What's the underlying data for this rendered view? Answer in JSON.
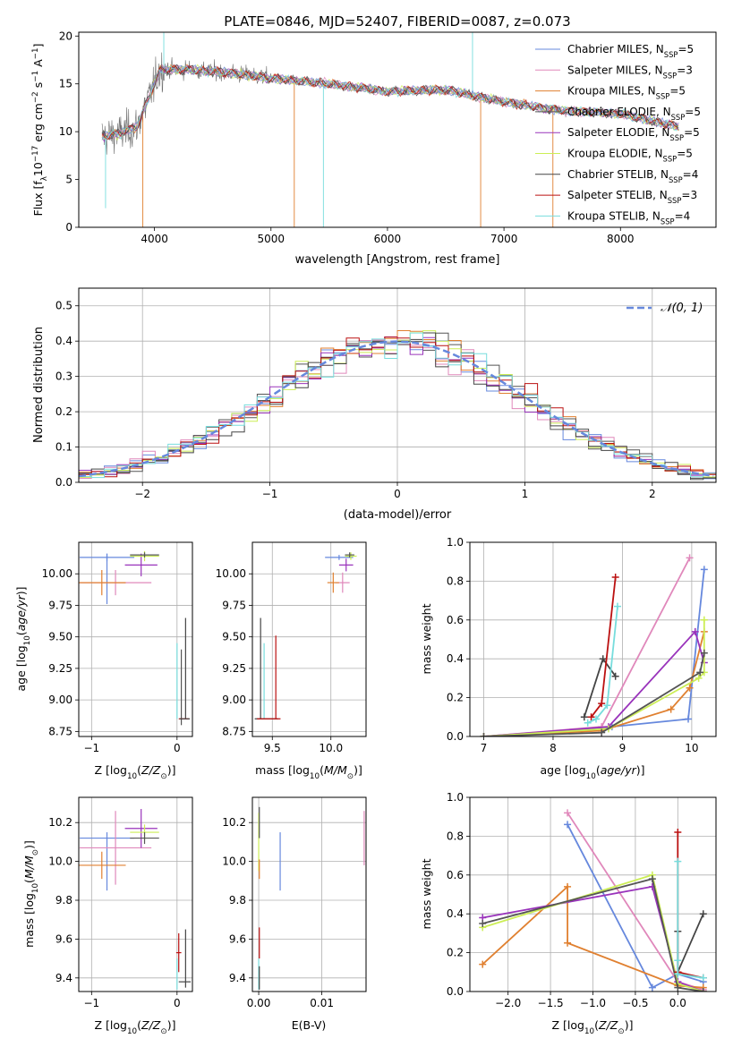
{
  "colors": [
    "#6688dd",
    "#e088bb",
    "#e08030",
    "#555555",
    "#9933bb",
    "#ccee55",
    "#444444",
    "#bb1111",
    "#77dddd"
  ],
  "chart_data": [
    {
      "id": "spectrum",
      "type": "line",
      "title": "PLATE=0846, MJD=52407, FIBERID=0087, z=0.073",
      "xlabel": "wavelength [Angstrom, rest frame]",
      "ylabel": "Flux [f_λ 10^-17 erg cm^-2 s^-1 A^-1]",
      "xlim": [
        3350,
        8820
      ],
      "ylim": [
        0,
        20.4
      ],
      "xticks": [
        4000,
        5000,
        6000,
        7000,
        8000
      ],
      "yticks": [
        0,
        5,
        10,
        15,
        20
      ],
      "grid": false,
      "legend_position": "top-right",
      "legend": [
        {
          "name": "Chabrier MILES, N",
          "sub": "SSP",
          "count": "=5"
        },
        {
          "name": "Salpeter MILES, N",
          "sub": "SSP",
          "count": "=3"
        },
        {
          "name": "Kroupa MILES, N",
          "sub": "SSP",
          "count": "=5"
        },
        {
          "name": "Chabrier ELODIE, N",
          "sub": "SSP",
          "count": "=5"
        },
        {
          "name": "Salpeter ELODIE, N",
          "sub": "SSP",
          "count": "=5"
        },
        {
          "name": "Kroupa ELODIE, N",
          "sub": "SSP",
          "count": "=5"
        },
        {
          "name": "Chabrier STELIB, N",
          "sub": "SSP",
          "count": "=4"
        },
        {
          "name": "Salpeter STELIB, N",
          "sub": "SSP",
          "count": "=3"
        },
        {
          "name": "Kroupa STELIB, N",
          "sub": "SSP",
          "count": "=4"
        }
      ],
      "continuum": [
        [
          3550,
          9.5
        ],
        [
          3700,
          9.8
        ],
        [
          3850,
          10.5
        ],
        [
          3950,
          13.5
        ],
        [
          4050,
          16.5
        ],
        [
          4300,
          16.5
        ],
        [
          4600,
          16.2
        ],
        [
          5000,
          15.6
        ],
        [
          5500,
          15.0
        ],
        [
          6000,
          14.2
        ],
        [
          6500,
          14.4
        ],
        [
          7000,
          13.1
        ],
        [
          7500,
          12.2
        ],
        [
          8000,
          11.9
        ],
        [
          8500,
          10.5
        ]
      ]
    },
    {
      "id": "residuals",
      "type": "histogram",
      "xlabel": "(data-model)/error",
      "ylabel": "Normed distribution",
      "xlim": [
        -2.5,
        2.5
      ],
      "ylim": [
        0,
        0.55
      ],
      "xticks": [
        -2,
        -1,
        0,
        1,
        2
      ],
      "yticks": [
        0.0,
        0.1,
        0.2,
        0.3,
        0.4,
        0.5
      ],
      "grid": true,
      "legend_position": "top-right",
      "legend": [
        "𝒩(0, 1)"
      ],
      "bin_width": 0.1
    },
    {
      "id": "age-vs-Z",
      "type": "errorbar",
      "xlabel": "Z [log10(Z/Z⊙)]",
      "ylabel": "age  [log10(age/yr)]",
      "xlim": [
        -1.15,
        0.18
      ],
      "ylim": [
        8.71,
        10.25
      ],
      "xticks": [
        -1,
        0
      ],
      "yticks": [
        8.75,
        9.0,
        9.25,
        9.5,
        9.75,
        10.0
      ],
      "grid": true,
      "points": [
        {
          "series": 0,
          "x": -0.82,
          "xerr": 0.32,
          "y": 10.13,
          "yerr": 0.03
        },
        {
          "series": 0,
          "x": -0.82,
          "xerr": 0.0,
          "y": 9.96,
          "yerr": 0.2
        },
        {
          "series": 1,
          "x": -0.72,
          "xerr": 0.42,
          "y": 9.93,
          "yerr": 0.1
        },
        {
          "series": 2,
          "x": -0.88,
          "xerr": 0.28,
          "y": 9.93,
          "yerr": 0.1
        },
        {
          "series": 4,
          "x": -0.42,
          "xerr": 0.19,
          "y": 10.07,
          "yerr": 0.09
        },
        {
          "series": 5,
          "x": -0.38,
          "xerr": 0.17,
          "y": 10.14,
          "yerr": 0.04
        },
        {
          "series": 3,
          "x": -0.38,
          "xerr": 0.17,
          "y": 10.15,
          "yerr": 0.02
        },
        {
          "series": 8,
          "x": 0.0,
          "xerr": 0.0,
          "y": 9.15,
          "yerr": 0.3
        },
        {
          "series": 3,
          "x": 0.05,
          "xerr": 0.0,
          "y": 9.1,
          "yerr": 0.3
        },
        {
          "series": 6,
          "x": 0.1,
          "xerr": 0.0,
          "y": 9.25,
          "yerr": 0.4
        },
        {
          "series": 7,
          "x": 0.08,
          "xerr": 0.06,
          "y": 8.85,
          "yerr": 0.0
        },
        {
          "series": 6,
          "x": 0.09,
          "xerr": 0.06,
          "y": 8.85,
          "yerr": 0.0
        }
      ]
    },
    {
      "id": "age-vs-mass",
      "type": "errorbar",
      "xlabel": "mass [log10(M/M⊙)]",
      "ylabel": "",
      "xlim": [
        9.33,
        10.3
      ],
      "ylim": [
        8.71,
        10.25
      ],
      "xticks": [
        9.5,
        10.0
      ],
      "yticks": [
        8.75,
        9.0,
        9.25,
        9.5,
        9.75,
        10.0
      ],
      "grid": true,
      "points": [
        {
          "series": 0,
          "x": 10.07,
          "xerr": 0.12,
          "y": 10.13,
          "yerr": 0.02
        },
        {
          "series": 1,
          "x": 10.1,
          "xerr": 0.06,
          "y": 9.93,
          "yerr": 0.08
        },
        {
          "series": 2,
          "x": 10.02,
          "xerr": 0.05,
          "y": 9.93,
          "yerr": 0.08
        },
        {
          "series": 4,
          "x": 10.13,
          "xerr": 0.06,
          "y": 10.07,
          "yerr": 0.05
        },
        {
          "series": 5,
          "x": 10.17,
          "xerr": 0.05,
          "y": 10.14,
          "yerr": 0.03
        },
        {
          "series": 3,
          "x": 10.16,
          "xerr": 0.04,
          "y": 10.15,
          "yerr": 0.02
        },
        {
          "series": 6,
          "x": 9.4,
          "xerr": 0.0,
          "y": 9.25,
          "yerr": 0.4
        },
        {
          "series": 8,
          "x": 9.43,
          "xerr": 0.0,
          "y": 9.15,
          "yerr": 0.3
        },
        {
          "series": 7,
          "x": 9.53,
          "xerr": 0.0,
          "y": 9.18,
          "yerr": 0.33
        },
        {
          "series": 6,
          "x": 9.45,
          "xerr": 0.1,
          "y": 8.85,
          "yerr": 0.0
        },
        {
          "series": 7,
          "x": 9.47,
          "xerr": 0.1,
          "y": 8.85,
          "yerr": 0.0
        }
      ]
    },
    {
      "id": "weight-vs-age",
      "type": "line",
      "xlabel": "age  [log10(age/yr)]",
      "ylabel": "mass weight",
      "xlim": [
        6.8,
        10.35
      ],
      "ylim": [
        0,
        1.0
      ],
      "xticks": [
        7,
        8,
        9,
        10
      ],
      "yticks": [
        0.0,
        0.2,
        0.4,
        0.6,
        0.8,
        1.0
      ],
      "grid": true,
      "series": [
        {
          "color_index": 0,
          "x": [
            7.0,
            8.85,
            9.95,
            10.18
          ],
          "y": [
            0.0,
            0.05,
            0.09,
            0.86
          ]
        },
        {
          "color_index": 1,
          "x": [
            7.0,
            8.7,
            9.97
          ],
          "y": [
            0.0,
            0.05,
            0.92
          ]
        },
        {
          "color_index": 2,
          "x": [
            7.0,
            8.7,
            9.7,
            9.97,
            10.18
          ],
          "y": [
            0.0,
            0.03,
            0.14,
            0.25,
            0.54
          ]
        },
        {
          "color_index": 4,
          "x": [
            7.0,
            8.8,
            10.05,
            10.18
          ],
          "y": [
            0.0,
            0.05,
            0.54,
            0.38
          ]
        },
        {
          "color_index": 5,
          "x": [
            7.0,
            8.8,
            10.1,
            10.18,
            10.18
          ],
          "y": [
            0.0,
            0.04,
            0.3,
            0.33,
            0.6
          ]
        },
        {
          "color_index": 3,
          "x": [
            7.0,
            8.7,
            10.12,
            10.18
          ],
          "y": [
            0.0,
            0.02,
            0.33,
            0.43
          ]
        },
        {
          "color_index": 6,
          "x": [
            8.45,
            8.72,
            8.9
          ],
          "y": [
            0.1,
            0.4,
            0.31
          ]
        },
        {
          "color_index": 7,
          "x": [
            8.55,
            8.7,
            8.9
          ],
          "y": [
            0.1,
            0.17,
            0.82
          ]
        },
        {
          "color_index": 8,
          "x": [
            8.5,
            8.62,
            8.78,
            8.93
          ],
          "y": [
            0.07,
            0.09,
            0.16,
            0.67
          ]
        }
      ]
    },
    {
      "id": "mass-vs-Z",
      "type": "errorbar",
      "xlabel": "Z [log10(Z/Z⊙)]",
      "ylabel": "mass [log10(M/M⊙)]",
      "xlim": [
        -1.15,
        0.18
      ],
      "ylim": [
        9.33,
        10.33
      ],
      "xticks": [
        -1,
        0
      ],
      "yticks": [
        9.4,
        9.6,
        9.8,
        10.0,
        10.2
      ],
      "grid": true,
      "points": [
        {
          "series": 0,
          "x": -0.82,
          "xerr": 0.32,
          "y": 10.12,
          "yerr": 0.0
        },
        {
          "series": 0,
          "x": -0.82,
          "xerr": 0.0,
          "y": 10.0,
          "yerr": 0.15
        },
        {
          "series": 1,
          "x": -0.72,
          "xerr": 0.42,
          "y": 10.07,
          "yerr": 0.19
        },
        {
          "series": 2,
          "x": -0.88,
          "xerr": 0.28,
          "y": 9.98,
          "yerr": 0.07
        },
        {
          "series": 4,
          "x": -0.42,
          "xerr": 0.19,
          "y": 10.17,
          "yerr": 0.1
        },
        {
          "series": 5,
          "x": -0.38,
          "xerr": 0.17,
          "y": 10.15,
          "yerr": 0.04
        },
        {
          "series": 3,
          "x": -0.38,
          "xerr": 0.17,
          "y": 10.12,
          "yerr": 0.03
        },
        {
          "series": 7,
          "x": 0.02,
          "xerr": 0.03,
          "y": 9.53,
          "yerr": 0.1
        },
        {
          "series": 8,
          "x": 0.0,
          "xerr": 0.0,
          "y": 9.42,
          "yerr": 0.08
        },
        {
          "series": 6,
          "x": 0.1,
          "xerr": 0.0,
          "y": 9.5,
          "yerr": 0.15
        },
        {
          "series": 6,
          "x": 0.09,
          "xerr": 0.07,
          "y": 9.38,
          "yerr": 0.0
        }
      ]
    },
    {
      "id": "mass-vs-EBV",
      "type": "errorbar",
      "xlabel": "E(B-V)",
      "ylabel": "",
      "xlim": [
        -0.001,
        0.017
      ],
      "ylim": [
        9.33,
        10.33
      ],
      "xticks": [
        0.0,
        0.01
      ],
      "yticks": [
        9.4,
        9.6,
        9.8,
        10.0,
        10.2
      ],
      "grid": true,
      "points": [
        {
          "series": 0,
          "x": 0.0034,
          "xerr": 0.0,
          "y": 10.0,
          "yerr": 0.15
        },
        {
          "series": 1,
          "x": 0.0167,
          "xerr": 0.0,
          "y": 10.12,
          "yerr": 0.14
        },
        {
          "series": 5,
          "x": 0.0,
          "xerr": 0.0,
          "y": 10.1,
          "yerr": 0.15
        },
        {
          "series": 3,
          "x": 0.0001,
          "xerr": 0.0,
          "y": 10.2,
          "yerr": 0.08
        },
        {
          "series": 2,
          "x": 0.0001,
          "xerr": 0.0,
          "y": 9.96,
          "yerr": 0.05
        },
        {
          "series": 7,
          "x": 0.0001,
          "xerr": 0.0,
          "y": 9.58,
          "yerr": 0.08
        },
        {
          "series": 8,
          "x": 0.0,
          "xerr": 0.0,
          "y": 9.42,
          "yerr": 0.08
        },
        {
          "series": 6,
          "x": 0.0001,
          "xerr": 0.0,
          "y": 9.4,
          "yerr": 0.06
        }
      ]
    },
    {
      "id": "weight-vs-Z",
      "type": "line",
      "xlabel": "Z [log10(Z/Z⊙)]",
      "ylabel": "mass weight",
      "xlim": [
        -2.45,
        0.45
      ],
      "ylim": [
        0,
        1.0
      ],
      "xticks": [
        -2.0,
        -1.5,
        -1.0,
        -0.5,
        0.0
      ],
      "yticks": [
        0.0,
        0.2,
        0.4,
        0.6,
        0.8,
        1.0
      ],
      "grid": true,
      "series": [
        {
          "color_index": 0,
          "x": [
            -1.3,
            -0.3,
            0.0,
            0.3
          ],
          "y": [
            0.86,
            0.02,
            0.09,
            0.05
          ]
        },
        {
          "color_index": 1,
          "x": [
            -1.3,
            0.0,
            0.3
          ],
          "y": [
            0.92,
            0.05,
            0.01
          ]
        },
        {
          "color_index": 2,
          "x": [
            -2.3,
            -1.3,
            -1.3,
            0.0,
            0.3
          ],
          "y": [
            0.14,
            0.54,
            0.25,
            0.03,
            0.02
          ]
        },
        {
          "color_index": 4,
          "x": [
            -2.3,
            -0.3,
            0.0,
            0.3
          ],
          "y": [
            0.38,
            0.54,
            0.05,
            0.0
          ]
        },
        {
          "color_index": 5,
          "x": [
            -2.3,
            -0.3,
            0.0,
            0.3
          ],
          "y": [
            0.33,
            0.6,
            0.04,
            0.0
          ]
        },
        {
          "color_index": 3,
          "x": [
            -2.3,
            -0.3,
            0.0,
            0.3
          ],
          "y": [
            0.35,
            0.58,
            0.02,
            0.0
          ]
        },
        {
          "color_index": 6,
          "x": [
            0.0,
            0.0,
            0.3
          ],
          "y": [
            0.31,
            0.1,
            0.4
          ]
        },
        {
          "color_index": 7,
          "x": [
            0.0,
            0.0,
            0.3
          ],
          "y": [
            0.82,
            0.1,
            0.07
          ]
        },
        {
          "color_index": 8,
          "x": [
            0.0,
            0.0,
            0.0,
            0.3
          ],
          "y": [
            0.67,
            0.16,
            0.09,
            0.07
          ]
        }
      ]
    }
  ]
}
